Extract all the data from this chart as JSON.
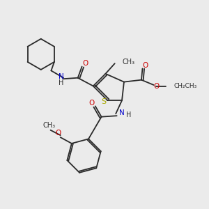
{
  "background_color": "#ebebeb",
  "bond_color": "#2a2a2a",
  "S_color": "#aaaa00",
  "N_color": "#0000cc",
  "O_color": "#cc0000",
  "figsize": [
    3.0,
    3.0
  ],
  "dpi": 100,
  "xlim": [
    0,
    10
  ],
  "ylim": [
    0,
    10
  ]
}
